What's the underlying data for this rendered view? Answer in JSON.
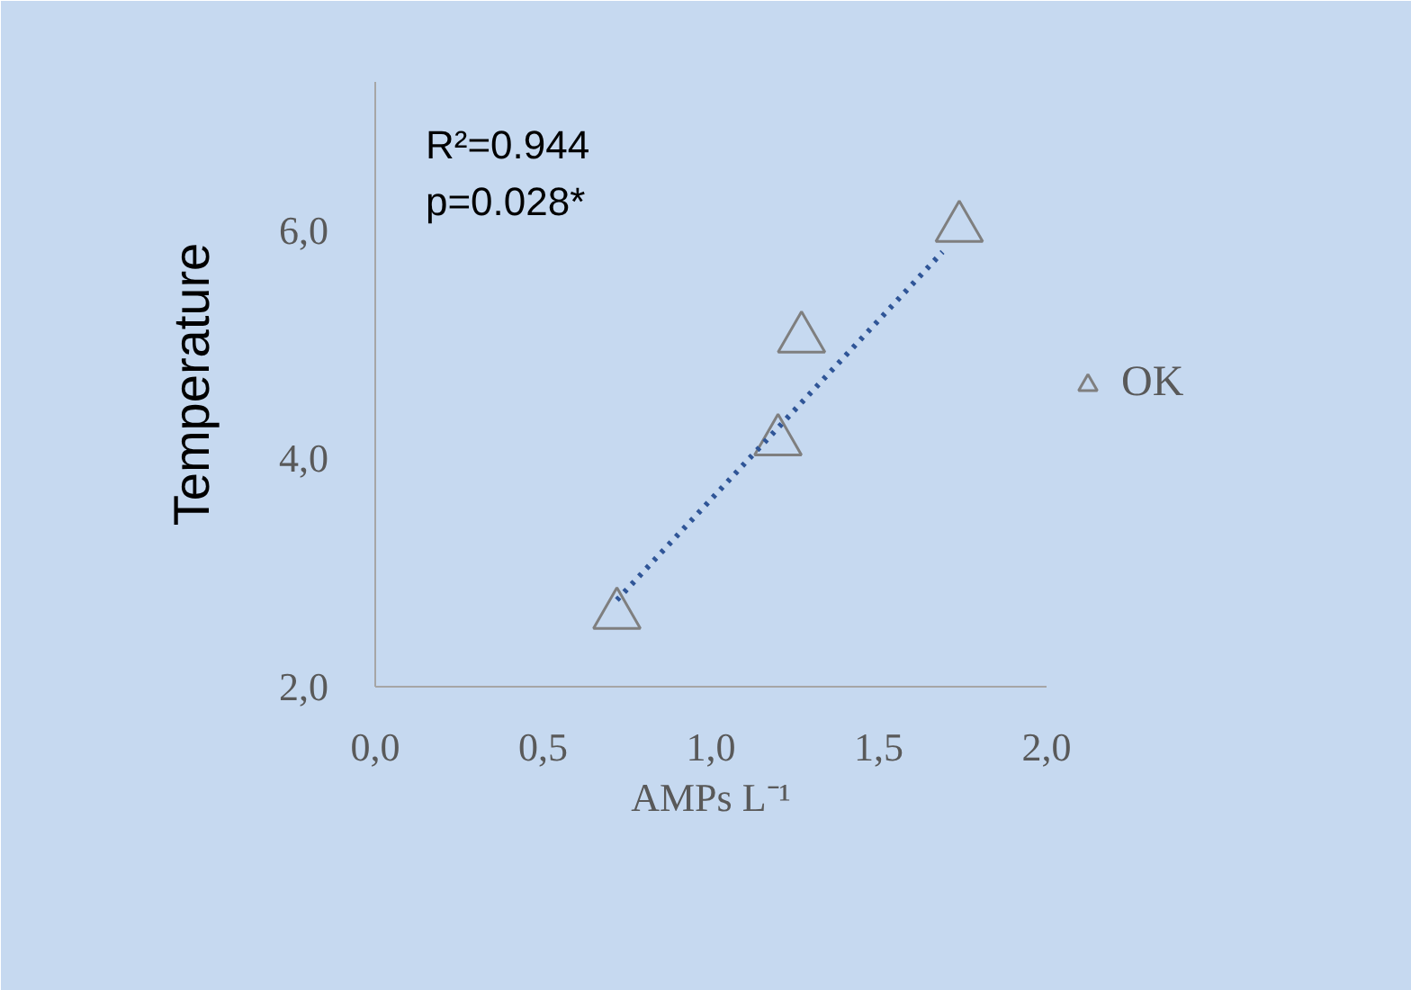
{
  "chart_data": {
    "type": "scatter",
    "xlabel": "AMPs L⁻¹",
    "ylabel": "Temperature",
    "xlim": [
      0,
      2.0
    ],
    "xticks": [
      {
        "value": 0,
        "label": "0,0"
      },
      {
        "value": 0.5,
        "label": "0,5"
      },
      {
        "value": 1.0,
        "label": "1,0"
      },
      {
        "value": 1.5,
        "label": "1,5"
      },
      {
        "value": 2.0,
        "label": "2,0"
      }
    ],
    "ylim": [
      2,
      7.3
    ],
    "yticks": [
      {
        "value": 2,
        "label": "2,0"
      },
      {
        "value": 4,
        "label": "4,0"
      },
      {
        "value": 6,
        "label": "6,0"
      }
    ],
    "grid": false,
    "legend": "right",
    "annotations": [
      "R²=0.944",
      "p=0.028*"
    ],
    "series": [
      {
        "name": "OK",
        "marker": "triangle",
        "color": "#7f7f7f",
        "x": [
          0.72,
          1.2,
          1.27,
          1.74
        ],
        "values": [
          2.63,
          4.15,
          5.05,
          6.02
        ]
      },
      {
        "type": "line",
        "color": "#2f5597",
        "line_style": "dotted",
        "marker": "none",
        "x": [
          0.72,
          1.69
        ],
        "values": [
          2.76,
          5.81
        ]
      }
    ]
  }
}
